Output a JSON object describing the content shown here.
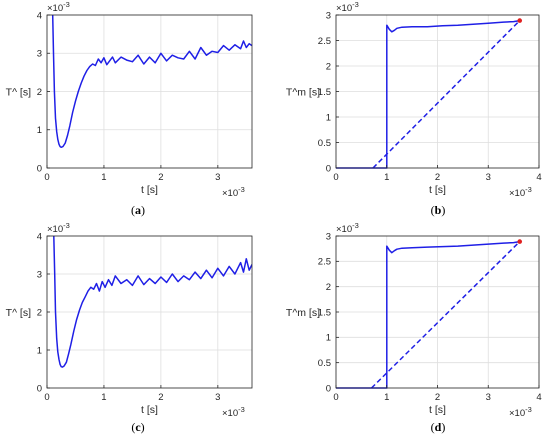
{
  "chart_data": [
    {
      "type": "line",
      "panel": "a",
      "caption_open": "(",
      "caption_letter": "a",
      "caption_close": ")",
      "ylabel": "T^ [s]",
      "xlabel": "t [s]",
      "x_exponent": "×10",
      "x_exponent_power": "-3",
      "y_exponent": "×10",
      "y_exponent_power": "-3",
      "xlim": [
        0,
        3.6
      ],
      "ylim": [
        0,
        4
      ],
      "xticks": [
        0,
        1,
        2,
        3
      ],
      "yticks": [
        0,
        1,
        2,
        3,
        4
      ],
      "grid": true,
      "series": [
        {
          "color": "#1f1fe6",
          "x": [
            0.1,
            0.115,
            0.13,
            0.15,
            0.17,
            0.19,
            0.21,
            0.23,
            0.25,
            0.28,
            0.32,
            0.36,
            0.4,
            0.45,
            0.5,
            0.55,
            0.6,
            0.65,
            0.7,
            0.75,
            0.8,
            0.85,
            0.9,
            0.95,
            1.0,
            1.05,
            1.1,
            1.15,
            1.2,
            1.3,
            1.4,
            1.5,
            1.6,
            1.7,
            1.8,
            1.9,
            2.0,
            2.1,
            2.2,
            2.3,
            2.4,
            2.5,
            2.6,
            2.7,
            2.8,
            2.9,
            3.0,
            3.1,
            3.2,
            3.3,
            3.4,
            3.45,
            3.5,
            3.55,
            3.6
          ],
          "y": [
            4.0,
            3.0,
            2.0,
            1.3,
            0.95,
            0.75,
            0.62,
            0.56,
            0.54,
            0.56,
            0.65,
            0.85,
            1.1,
            1.45,
            1.75,
            2.0,
            2.22,
            2.4,
            2.55,
            2.65,
            2.72,
            2.68,
            2.85,
            2.75,
            2.88,
            2.7,
            2.8,
            2.9,
            2.75,
            2.9,
            2.82,
            2.78,
            2.95,
            2.72,
            2.9,
            2.75,
            3.0,
            2.8,
            2.95,
            2.88,
            2.85,
            3.05,
            2.85,
            3.15,
            2.95,
            3.05,
            3.02,
            3.2,
            3.08,
            3.22,
            3.12,
            3.32,
            3.15,
            3.25,
            3.2
          ]
        }
      ]
    },
    {
      "type": "line",
      "panel": "b",
      "caption_open": "(",
      "caption_letter": "b",
      "caption_close": ")",
      "ylabel": "T^m [s]",
      "xlabel": "t [s]",
      "x_exponent": "×10",
      "x_exponent_power": "-3",
      "y_exponent": "×10",
      "y_exponent_power": "-3",
      "xlim": [
        0,
        4
      ],
      "ylim": [
        0,
        3
      ],
      "xticks": [
        0,
        1,
        2,
        3,
        4
      ],
      "yticks": [
        0,
        0.5,
        1,
        1.5,
        2,
        2.5,
        3
      ],
      "grid": true,
      "series": [
        {
          "color": "#1f1fe6",
          "style": "solid",
          "x": [
            0,
            1.0,
            1.0,
            1.05,
            1.1,
            1.15,
            1.2,
            1.3,
            1.5,
            1.8,
            2.1,
            2.4,
            2.7,
            3.0,
            3.3,
            3.5,
            3.62
          ],
          "y": [
            0,
            0,
            2.8,
            2.72,
            2.67,
            2.7,
            2.74,
            2.76,
            2.77,
            2.77,
            2.79,
            2.8,
            2.82,
            2.84,
            2.86,
            2.87,
            2.89
          ]
        },
        {
          "color": "#1f1fe6",
          "style": "dashed",
          "x": [
            0.73,
            3.62
          ],
          "y": [
            0,
            2.89
          ]
        }
      ],
      "marker": {
        "x": 3.62,
        "y": 2.89,
        "color": "#e02020"
      }
    },
    {
      "type": "line",
      "panel": "c",
      "caption_open": "(",
      "caption_letter": "c",
      "caption_close": ")",
      "ylabel": "T^ [s]",
      "xlabel": "t [s]",
      "x_exponent": "×10",
      "x_exponent_power": "-3",
      "y_exponent": "×10",
      "y_exponent_power": "-3",
      "xlim": [
        0,
        3.6
      ],
      "ylim": [
        0,
        4
      ],
      "xticks": [
        0,
        1,
        2,
        3
      ],
      "yticks": [
        0,
        1,
        2,
        3,
        4
      ],
      "grid": true,
      "series": [
        {
          "color": "#1f1fe6",
          "x": [
            0.12,
            0.135,
            0.15,
            0.17,
            0.19,
            0.21,
            0.23,
            0.25,
            0.27,
            0.3,
            0.34,
            0.38,
            0.42,
            0.47,
            0.52,
            0.57,
            0.62,
            0.67,
            0.72,
            0.77,
            0.82,
            0.87,
            0.92,
            0.97,
            1.02,
            1.08,
            1.14,
            1.2,
            1.3,
            1.4,
            1.5,
            1.6,
            1.7,
            1.8,
            1.9,
            2.0,
            2.1,
            2.2,
            2.3,
            2.4,
            2.5,
            2.6,
            2.7,
            2.8,
            2.9,
            3.0,
            3.1,
            3.2,
            3.3,
            3.4,
            3.45,
            3.5,
            3.55,
            3.6
          ],
          "y": [
            4.0,
            3.0,
            2.0,
            1.3,
            0.95,
            0.75,
            0.62,
            0.56,
            0.55,
            0.58,
            0.68,
            0.9,
            1.15,
            1.5,
            1.8,
            2.05,
            2.25,
            2.4,
            2.55,
            2.65,
            2.6,
            2.75,
            2.55,
            2.8,
            2.65,
            2.85,
            2.7,
            2.95,
            2.75,
            2.85,
            2.7,
            2.95,
            2.72,
            2.88,
            2.75,
            2.92,
            2.78,
            3.0,
            2.8,
            2.95,
            2.85,
            3.05,
            2.88,
            3.1,
            2.9,
            3.15,
            2.95,
            3.2,
            3.0,
            3.3,
            3.05,
            3.4,
            3.1,
            3.25
          ]
        }
      ]
    },
    {
      "type": "line",
      "panel": "d",
      "caption_open": "(",
      "caption_letter": "d",
      "caption_close": ")",
      "ylabel": "T^m [s]",
      "xlabel": "t [s]",
      "x_exponent": "×10",
      "x_exponent_power": "-3",
      "y_exponent": "×10",
      "y_exponent_power": "-3",
      "xlim": [
        0,
        4
      ],
      "ylim": [
        0,
        3
      ],
      "xticks": [
        0,
        1,
        2,
        3,
        4
      ],
      "yticks": [
        0,
        0.5,
        1,
        1.5,
        2,
        2.5,
        3
      ],
      "grid": true,
      "series": [
        {
          "color": "#1f1fe6",
          "style": "solid",
          "x": [
            0,
            1.0,
            1.0,
            1.05,
            1.1,
            1.15,
            1.2,
            1.3,
            1.5,
            1.8,
            2.1,
            2.4,
            2.7,
            3.0,
            3.3,
            3.5,
            3.62
          ],
          "y": [
            0,
            0,
            2.8,
            2.72,
            2.67,
            2.71,
            2.74,
            2.76,
            2.77,
            2.78,
            2.79,
            2.8,
            2.82,
            2.84,
            2.86,
            2.87,
            2.89
          ]
        },
        {
          "color": "#1f1fe6",
          "style": "dashed",
          "x": [
            0.7,
            3.62
          ],
          "y": [
            0,
            2.89
          ]
        }
      ],
      "marker": {
        "x": 3.62,
        "y": 2.89,
        "color": "#e02020"
      }
    }
  ]
}
